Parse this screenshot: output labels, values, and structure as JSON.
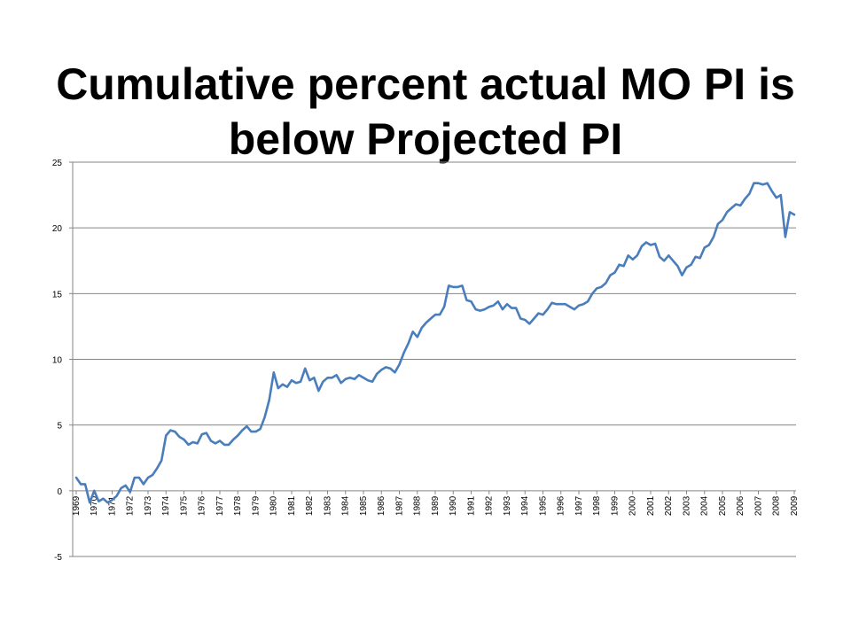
{
  "slide": {
    "title": "Cumulative percent actual MO PI is below Projected PI"
  },
  "chart_data": {
    "type": "line",
    "title": "",
    "xlabel": "",
    "ylabel": "",
    "ylim": [
      -5,
      25
    ],
    "yticks": [
      -5,
      0,
      5,
      10,
      15,
      20,
      25
    ],
    "grid": true,
    "legend": "none",
    "line_color": "#4a7ebb",
    "x_tick_labels": [
      "1969",
      "1970",
      "1971",
      "1972",
      "1973",
      "1974",
      "1975",
      "1976",
      "1977",
      "1978",
      "1979",
      "1980",
      "1981",
      "1982",
      "1983",
      "1984",
      "1985",
      "1986",
      "1987",
      "1988",
      "1989",
      "1990",
      "1991",
      "1992",
      "1993",
      "1994",
      "1995",
      "1996",
      "1997",
      "1998",
      "1999",
      "2000",
      "2001",
      "2002",
      "2003",
      "2004",
      "2005",
      "2006",
      "2007",
      "2008",
      "2009"
    ],
    "series": [
      {
        "x_start": 1969,
        "step": 0.25,
        "values": [
          1.0,
          0.5,
          0.5,
          -0.9,
          0.0,
          -0.8,
          -0.6,
          -0.9,
          -0.7,
          -0.4,
          0.2,
          0.4,
          -0.1,
          1.0,
          1.0,
          0.5,
          1.0,
          1.2,
          1.7,
          2.3,
          4.2,
          4.6,
          4.5,
          4.1,
          3.9,
          3.5,
          3.7,
          3.6,
          4.3,
          4.4,
          3.8,
          3.6,
          3.8,
          3.5,
          3.5,
          3.9,
          4.2,
          4.6,
          4.9,
          4.5,
          4.5,
          4.7,
          5.6,
          6.9,
          9.0,
          7.8,
          8.1,
          7.9,
          8.4,
          8.2,
          8.3,
          9.3,
          8.4,
          8.6,
          7.6,
          8.3,
          8.6,
          8.6,
          8.8,
          8.2,
          8.5,
          8.6,
          8.5,
          8.8,
          8.6,
          8.4,
          8.3,
          8.9,
          9.2,
          9.4,
          9.3,
          9.0,
          9.6,
          10.5,
          11.2,
          12.1,
          11.7,
          12.4,
          12.8,
          13.1,
          13.4,
          13.4,
          14.0,
          15.6,
          15.5,
          15.5,
          15.6,
          14.5,
          14.4,
          13.8,
          13.7,
          13.8,
          14.0,
          14.1,
          14.4,
          13.8,
          14.2,
          13.9,
          13.9,
          13.1,
          13.0,
          12.7,
          13.1,
          13.5,
          13.4,
          13.8,
          14.3,
          14.2,
          14.2,
          14.2,
          14.0,
          13.8,
          14.1,
          14.2,
          14.4,
          15.0,
          15.4,
          15.5,
          15.8,
          16.4,
          16.6,
          17.2,
          17.1,
          17.9,
          17.6,
          17.9,
          18.6,
          18.9,
          18.7,
          18.8,
          17.8,
          17.5,
          17.9,
          17.5,
          17.1,
          16.4,
          17.0,
          17.2,
          17.8,
          17.7,
          18.5,
          18.7,
          19.3,
          20.3,
          20.6,
          21.2,
          21.5,
          21.8,
          21.7,
          22.2,
          22.6,
          23.4,
          23.4,
          23.3,
          23.4,
          22.8,
          22.3,
          22.5,
          19.3,
          21.2,
          21.0
        ]
      }
    ]
  }
}
